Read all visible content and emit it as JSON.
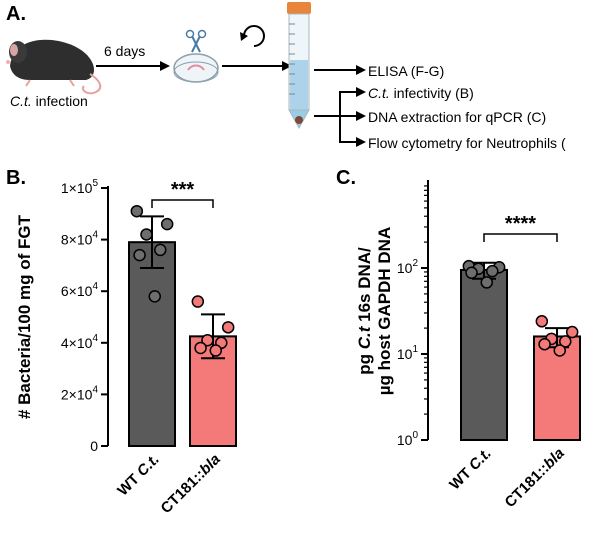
{
  "panel_a": {
    "label": "A.",
    "infection_label_italic": "C.t.",
    "infection_label_rest": " infection",
    "arrow_label": "6 days",
    "outputs": [
      {
        "parts": [
          {
            "text": "ELISA (F-G)",
            "italic": false
          }
        ]
      },
      {
        "parts": [
          {
            "text": "C.t.",
            "italic": true
          },
          {
            "text": " infectivity (B)",
            "italic": false
          }
        ]
      },
      {
        "parts": [
          {
            "text": "DNA extraction for qPCR (C)",
            "italic": false
          }
        ]
      },
      {
        "parts": [
          {
            "text": "Flow cytometry for Neutrophils (",
            "italic": false
          }
        ]
      }
    ],
    "icons": [
      "mouse-icon",
      "dissection-dish-icon",
      "tissue-homogenize-icon",
      "centrifuge-tube-icon"
    ]
  },
  "chart_data": [
    {
      "panel_label": "B.",
      "type": "bar",
      "scale": "linear",
      "ylabel": "# Bacteria/100 mg of FGT",
      "ylim": [
        0,
        100000
      ],
      "yticks": [
        {
          "value": 0,
          "label": "0",
          "sup": ""
        },
        {
          "value": 20000,
          "label": "2×10",
          "sup": "4"
        },
        {
          "value": 40000,
          "label": "4×10",
          "sup": "4"
        },
        {
          "value": 60000,
          "label": "6×10",
          "sup": "4"
        },
        {
          "value": 80000,
          "label": "8×10",
          "sup": "4"
        },
        {
          "value": 100000,
          "label": "1×10",
          "sup": "5"
        }
      ],
      "categories": [
        {
          "parts": [
            {
              "text": "WT ",
              "italic": false
            },
            {
              "text": "C.t.",
              "italic": true
            }
          ]
        },
        {
          "parts": [
            {
              "text": "CT181::",
              "italic": false
            },
            {
              "text": "bla",
              "italic": true
            }
          ]
        }
      ],
      "series": [
        {
          "mean": 79000,
          "sd": 10000,
          "points": [
            91000,
            86000,
            82000,
            76000,
            74000,
            58000
          ],
          "color": "#5a5a5a",
          "point_color": "#6e6e6e"
        },
        {
          "mean": 42500,
          "sd": 8500,
          "points": [
            56000,
            46000,
            41000,
            40000,
            38000,
            37000
          ],
          "color": "#f47a7a",
          "point_color": "#f47a7a"
        }
      ],
      "significance": "***"
    },
    {
      "panel_label": "C.",
      "type": "bar",
      "scale": "log",
      "ylabel_line1_parts": [
        {
          "text": "pg ",
          "italic": false
        },
        {
          "text": "C.t",
          "italic": true
        },
        {
          "text": " 16s DNA/",
          "italic": false
        }
      ],
      "ylabel_line2": "µg host GAPDH DNA",
      "ylim": [
        1,
        1000
      ],
      "yticks": [
        {
          "value": 1,
          "label": "10",
          "sup": "0"
        },
        {
          "value": 10,
          "label": "10",
          "sup": "1"
        },
        {
          "value": 100,
          "label": "10",
          "sup": "2"
        }
      ],
      "categories": [
        {
          "parts": [
            {
              "text": "WT ",
              "italic": false
            },
            {
              "text": "C.t.",
              "italic": true
            }
          ]
        },
        {
          "parts": [
            {
              "text": "CT181::",
              "italic": false
            },
            {
              "text": "bla",
              "italic": true
            }
          ]
        }
      ],
      "series": [
        {
          "mean": 95,
          "sd_lo": 75,
          "sd_hi": 115,
          "points": [
            105,
            102,
            98,
            92,
            88,
            68
          ],
          "color": "#5a5a5a",
          "point_color": "#6e6e6e"
        },
        {
          "mean": 16,
          "sd_lo": 12,
          "sd_hi": 20,
          "points": [
            24,
            18,
            15,
            14,
            13,
            11
          ],
          "color": "#f47a7a",
          "point_color": "#f47a7a"
        }
      ],
      "significance": "****"
    }
  ]
}
